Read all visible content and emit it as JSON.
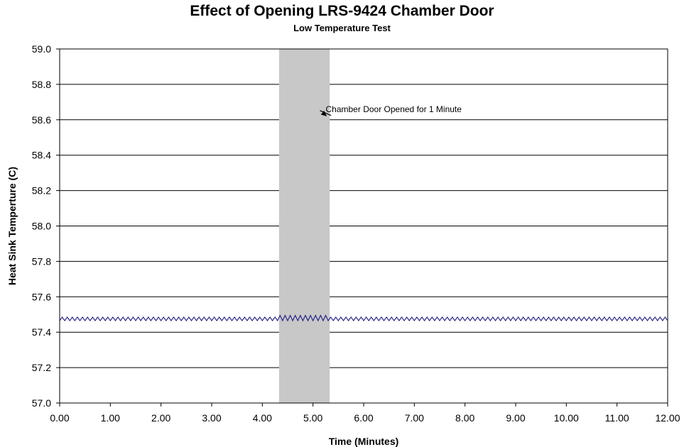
{
  "chart_data": {
    "type": "line",
    "title": "Effect of Opening LRS-9424 Chamber Door",
    "subtitle": "Low Temperature Test",
    "xlabel": "Time (Minutes)",
    "ylabel": "Heat Sink Temperture (C)",
    "xlim": [
      0,
      12
    ],
    "ylim": [
      57.0,
      59.0
    ],
    "x_ticks": [
      "0.00",
      "1.00",
      "2.00",
      "3.00",
      "4.00",
      "5.00",
      "6.00",
      "7.00",
      "8.00",
      "9.00",
      "10.00",
      "11.00",
      "12.00"
    ],
    "y_ticks": [
      "57.0",
      "57.2",
      "57.4",
      "57.6",
      "57.8",
      "58.0",
      "58.2",
      "58.4",
      "58.6",
      "58.8",
      "59.0"
    ],
    "grid": {
      "horizontal": true,
      "vertical": false
    },
    "shaded_region": {
      "x_start": 4.33,
      "x_end": 5.33,
      "color": "#c8c8c8"
    },
    "annotation": {
      "text": "Chamber Door Opened for 1 Minute",
      "x": 5.25,
      "y": 58.66
    },
    "series": [
      {
        "color": "#1a1a80",
        "oscillation": {
          "x_start": 0.0,
          "x_end": 12.0,
          "period_minutes": 0.1,
          "low": 57.465,
          "high": 57.485,
          "high_door_open": 57.495
        }
      }
    ]
  }
}
